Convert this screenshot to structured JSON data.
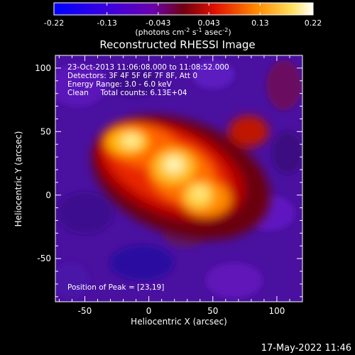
{
  "colorbar": {
    "ticks": [
      "-0.22",
      "-0.13",
      "-0.043",
      "0.043",
      "0.13",
      "0.22"
    ],
    "tick_values": [
      -0.22,
      -0.13,
      -0.043,
      0.043,
      0.13,
      0.22
    ],
    "range": [
      -0.22,
      0.22
    ],
    "units": {
      "part1": "(photons cm",
      "exp1": "-2",
      "part2": " s",
      "exp2": "-1",
      "part3": " asec",
      "exp3": "-2",
      "part4": ")"
    },
    "colors": [
      "#0000ff",
      "#5a00c8",
      "#7a0000",
      "#ff3000",
      "#ffb400",
      "#ffffff"
    ]
  },
  "chart_data": {
    "type": "heatmap",
    "title": "Reconstructed RHESSI Image",
    "xlabel": "Heliocentric X (arcsec)",
    "ylabel": "Heliocentric Y (arcsec)",
    "xlim": [
      -73,
      120
    ],
    "ylim": [
      -84,
      110
    ],
    "xticks": [
      -50,
      0,
      50,
      100
    ],
    "yticks": [
      -50,
      0,
      50,
      100
    ],
    "grid": false,
    "peak_position": [
      23,
      19
    ],
    "bright_sources": [
      {
        "x": -10,
        "y": 45,
        "value": 0.2
      },
      {
        "x": 20,
        "y": 25,
        "value": 0.22
      },
      {
        "x": 40,
        "y": 0,
        "value": 0.2
      },
      {
        "x": 60,
        "y": 50,
        "value": 0.12
      }
    ],
    "info_lines": [
      "23-Oct-2013 11:06:08.000 to 11:08:52.000",
      "Detectors: 3F 4F 5F 6F 7F 8F, Att 0",
      "Energy Range: 3.0 - 6.0 keV",
      "Clean     Total counts: 6.13E+04"
    ],
    "peak_label": "Position of Peak = [23,19]"
  },
  "timestamp": "17-May-2022 11:46"
}
